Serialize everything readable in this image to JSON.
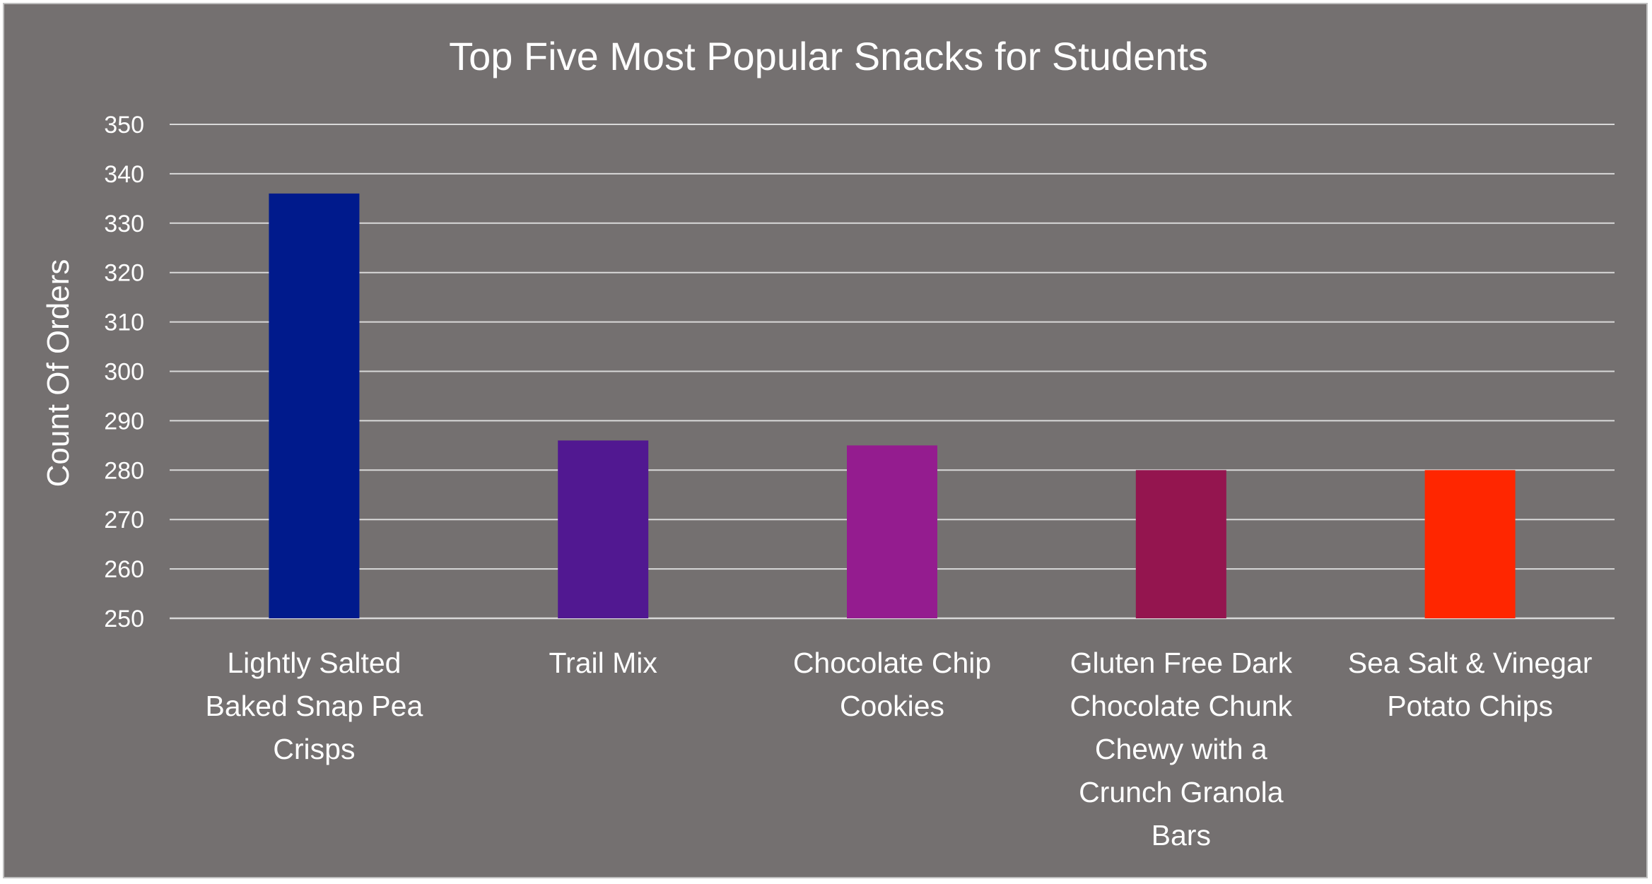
{
  "chart_data": {
    "type": "bar",
    "title": "Top Five Most Popular Snacks for Students",
    "xlabel": "",
    "ylabel": "Count Of Orders",
    "ylim": [
      250,
      350
    ],
    "ytick_step": 10,
    "yticks": [
      "250",
      "260",
      "270",
      "280",
      "290",
      "300",
      "310",
      "320",
      "330",
      "340",
      "350"
    ],
    "grid": true,
    "legend": "none",
    "categories": [
      "Lightly Salted Baked Snap Pea Crisps",
      "Trail Mix",
      "Chocolate Chip Cookies",
      "Gluten Free Dark Chocolate Chunk Chewy with a Crunch Granola Bars",
      "Sea Salt & Vinegar Potato Chips"
    ],
    "category_label_lines": [
      [
        "Lightly Salted",
        "Baked Snap Pea",
        "Crisps"
      ],
      [
        "Trail Mix"
      ],
      [
        "Chocolate Chip",
        "Cookies"
      ],
      [
        "Gluten Free Dark",
        "Chocolate Chunk",
        "Chewy with a",
        "Crunch Granola",
        "Bars"
      ],
      [
        "Sea Salt & Vinegar",
        "Potato Chips"
      ]
    ],
    "values": [
      336,
      286,
      285,
      280,
      280
    ],
    "bar_colors": [
      "#001A8C",
      "#511891",
      "#941C8F",
      "#94154F",
      "#FF2600"
    ],
    "background_color": "#747070",
    "gridline_color": "#d9d9d9",
    "text_color": "#ffffff"
  }
}
